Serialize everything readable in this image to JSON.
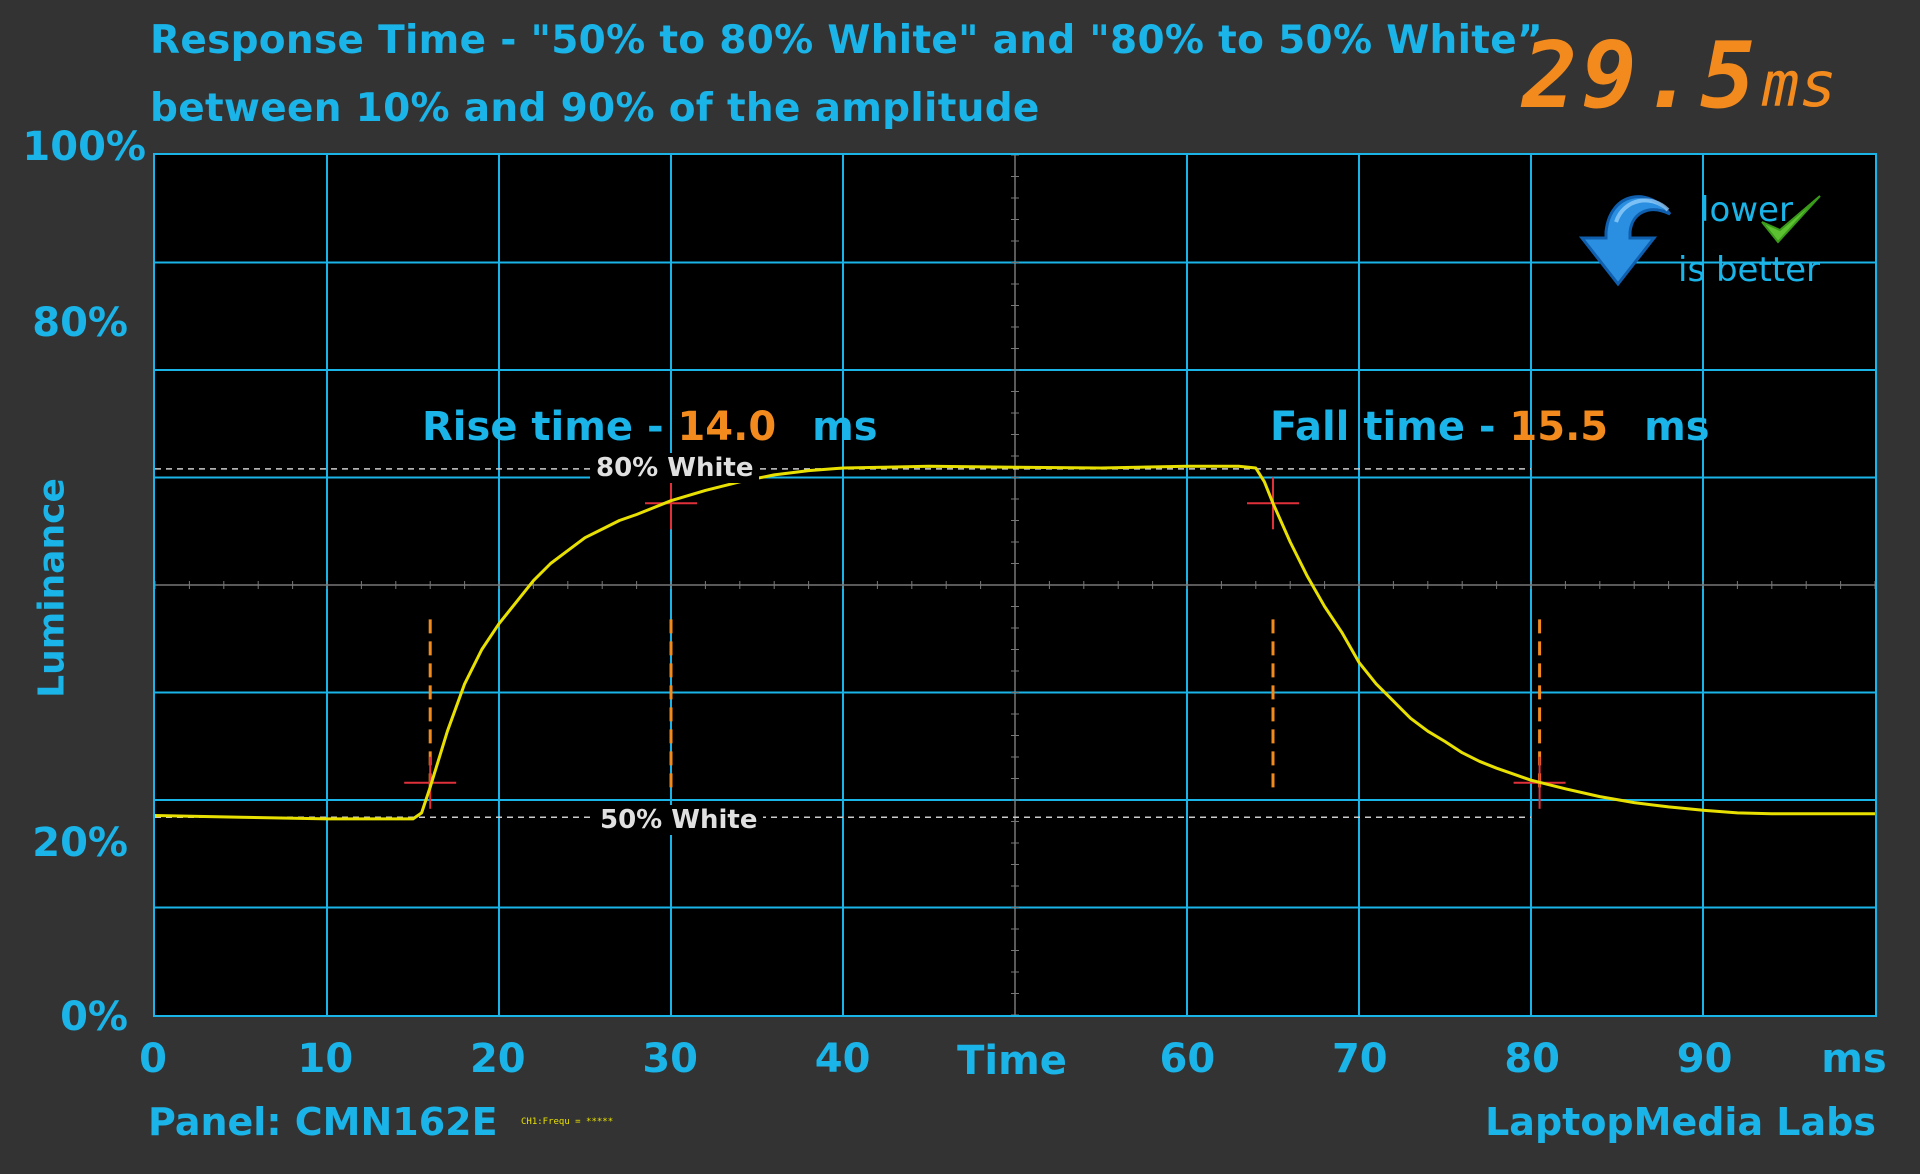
{
  "header": {
    "title_line1": "Response Time - \"50% to 80% White\" and \"80% to 50% White”",
    "title_line2": "between 10% and 90% of the amplitude",
    "big_value": "29.5",
    "big_unit": "ms"
  },
  "badge": {
    "line1": "lower",
    "line2": "is better"
  },
  "footer": {
    "panel": "Panel: CMN162E",
    "brand": "LaptopMedia Labs"
  },
  "colors": {
    "accent": "#1ab4e8",
    "value": "#f28a1e",
    "trace": "#e8e000",
    "background": "#333333",
    "plot": "#000000"
  },
  "chart_data": {
    "type": "line",
    "xlabel": "Time",
    "x_unit": "ms",
    "ylabel": "Luminance",
    "xlim": [
      0,
      100
    ],
    "ylim": [
      0,
      100
    ],
    "grid": true,
    "x_ticks": [
      "0",
      "10",
      "20",
      "30",
      "40",
      "",
      "60",
      "70",
      "80",
      "90"
    ],
    "y_ticks": [
      {
        "value": 0,
        "label": "0%"
      },
      {
        "value": 20,
        "label": "20%"
      },
      {
        "value": 80,
        "label": "80%"
      },
      {
        "value": 100,
        "label": "100%"
      }
    ],
    "levels": [
      {
        "label": "80% White",
        "y": 63.5
      },
      {
        "label": "50% White",
        "y": 23
      }
    ],
    "rise": {
      "label": "Rise time - ",
      "value": "14.0",
      "unit": "ms",
      "start_x": 16,
      "end_x": 30,
      "start_y": 27,
      "end_y": 59.5
    },
    "fall": {
      "label": "Fall time - ",
      "value": "15.5",
      "unit": "ms",
      "start_x": 65,
      "end_x": 80.5,
      "start_y": 59.5,
      "end_y": 27
    },
    "series": [
      {
        "x": [
          0,
          5,
          10,
          15,
          15.5,
          16,
          17,
          18,
          19,
          20,
          21,
          22,
          23,
          24,
          25,
          26,
          27,
          28,
          29,
          30,
          32,
          34,
          36,
          38,
          40,
          45,
          50,
          55,
          60,
          63,
          64,
          64.5,
          65,
          66,
          67,
          68,
          69,
          70,
          71,
          72,
          73,
          74,
          75,
          76,
          77,
          78,
          79,
          80,
          82,
          84,
          86,
          88,
          90,
          92,
          94,
          96,
          100
        ],
        "y": [
          23.2,
          23.0,
          22.8,
          22.8,
          23.5,
          26.5,
          33,
          38.5,
          42.5,
          45.5,
          48,
          50.5,
          52.5,
          54,
          55.5,
          56.5,
          57.5,
          58.2,
          59,
          59.8,
          61,
          62,
          62.8,
          63.3,
          63.6,
          63.8,
          63.7,
          63.6,
          63.8,
          63.8,
          63.6,
          62,
          59.5,
          55,
          51,
          47.5,
          44.5,
          41,
          38.5,
          36.5,
          34.5,
          33,
          31.8,
          30.5,
          29.5,
          28.7,
          28,
          27.3,
          26.3,
          25.4,
          24.7,
          24.2,
          23.8,
          23.5,
          23.4,
          23.4,
          23.4
        ]
      }
    ]
  }
}
